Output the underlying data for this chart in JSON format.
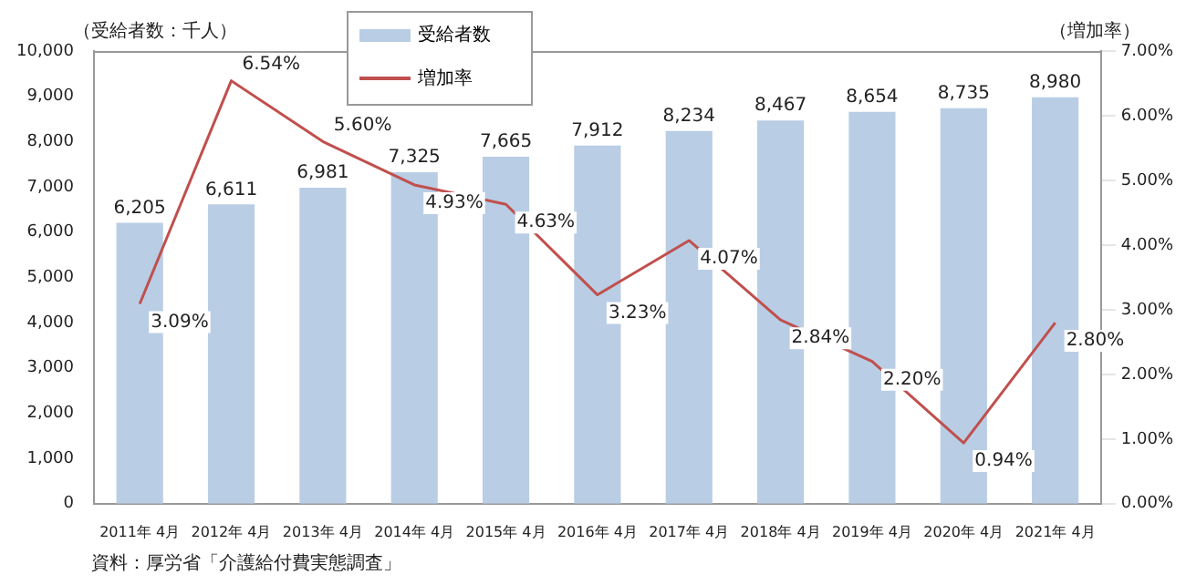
{
  "chart_data": {
    "type": "bar",
    "categories": [
      "2011年 4月",
      "2012年 4月",
      "2013年 4月",
      "2014年 4月",
      "2015年 4月",
      "2016年 4月",
      "2017年 4月",
      "2018年 4月",
      "2019年 4月",
      "2020年 4月",
      "2021年 4月"
    ],
    "series": [
      {
        "name": "受給者数",
        "color": "#b9cde5",
        "values": [
          6205,
          6611,
          6981,
          7325,
          7665,
          7912,
          8234,
          8467,
          8654,
          8735,
          8980
        ],
        "value_labels": [
          "6,205",
          "6,611",
          "6,981",
          "7,325",
          "7,665",
          "7,912",
          "8,234",
          "8,467",
          "8,654",
          "8,735",
          "8,980"
        ]
      },
      {
        "name": "増加率",
        "type": "line",
        "axis": "y2",
        "color": "#c0504d",
        "values": [
          3.09,
          6.54,
          5.6,
          4.93,
          4.63,
          3.23,
          4.07,
          2.84,
          2.2,
          0.94,
          2.8
        ],
        "value_labels": [
          "3.09%",
          "6.54%",
          "5.60%",
          "4.93%",
          "4.63%",
          "3.23%",
          "4.07%",
          "2.84%",
          "2.20%",
          "0.94%",
          "2.80%"
        ]
      }
    ],
    "ylabel": "（受給者数：千人）",
    "y2label": "（増加率）",
    "ylim": [
      0,
      10000
    ],
    "yticks": [
      {
        "value": 0,
        "label": "0"
      },
      {
        "value": 1000,
        "label": "1,000"
      },
      {
        "value": 2000,
        "label": "2,000"
      },
      {
        "value": 3000,
        "label": "3,000"
      },
      {
        "value": 4000,
        "label": "4,000"
      },
      {
        "value": 5000,
        "label": "5,000"
      },
      {
        "value": 6000,
        "label": "6,000"
      },
      {
        "value": 7000,
        "label": "7,000"
      },
      {
        "value": 8000,
        "label": "8,000"
      },
      {
        "value": 9000,
        "label": "9,000"
      },
      {
        "value": 10000,
        "label": "10,000"
      }
    ],
    "y2lim": [
      0,
      7
    ],
    "y2ticks": [
      {
        "value": 0,
        "label": "0.00%"
      },
      {
        "value": 1,
        "label": "1.00%"
      },
      {
        "value": 2,
        "label": "2.00%"
      },
      {
        "value": 3,
        "label": "3.00%"
      },
      {
        "value": 4,
        "label": "4.00%"
      },
      {
        "value": 5,
        "label": "5.00%"
      },
      {
        "value": 6,
        "label": "6.00%"
      },
      {
        "value": 7,
        "label": "7.00%"
      }
    ],
    "grid": false,
    "legend": "top",
    "marker": "none",
    "annotations": [
      "資料：厚労省「介護給付費実態調査」"
    ]
  }
}
